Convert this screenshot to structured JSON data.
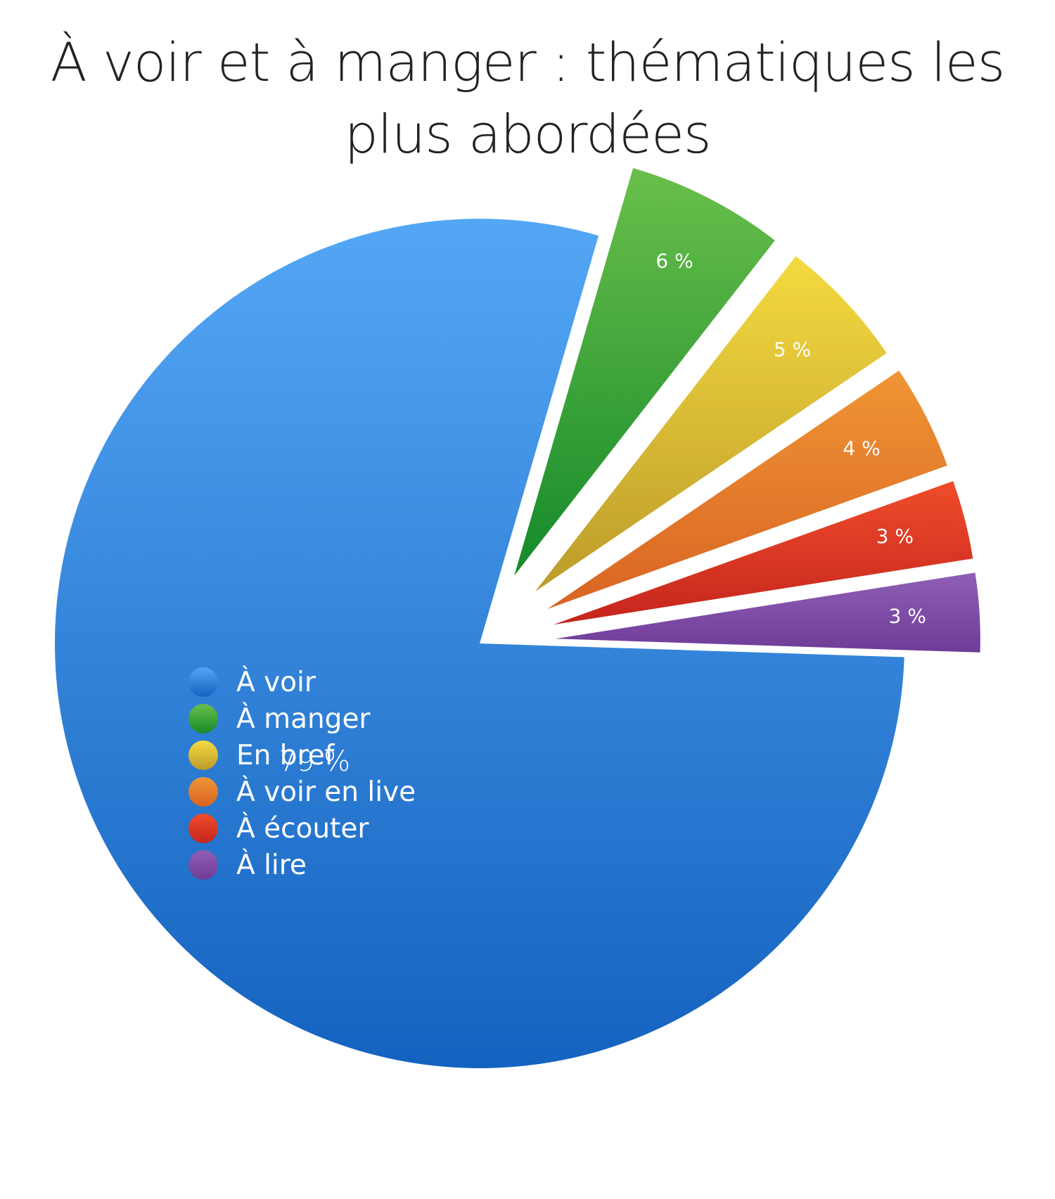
{
  "chart_data": {
    "type": "pie",
    "title": "À voir et à manger : thématiques les plus abordées",
    "slices": [
      {
        "name": "À voir",
        "value": 79,
        "label": "79 %",
        "color": "#3a8ee0",
        "color_top": "#54a7f5",
        "color_bottom": "#1462bf",
        "exploded": false
      },
      {
        "name": "À manger",
        "value": 6,
        "label": "6 %",
        "color": "#3fa33a",
        "color_top": "#6abf4b",
        "color_bottom": "#158a2a",
        "exploded": true
      },
      {
        "name": "En bref",
        "value": 5,
        "label": "5 %",
        "color": "#e0c13a",
        "color_top": "#f4da40",
        "color_bottom": "#bc9b2a",
        "exploded": true
      },
      {
        "name": "À voir en live",
        "value": 4,
        "label": "4 %",
        "color": "#e8802c",
        "color_top": "#f09535",
        "color_bottom": "#d86423",
        "exploded": true
      },
      {
        "name": "À écouter",
        "value": 3,
        "label": "3 %",
        "color": "#e0392a",
        "color_top": "#f04c2b",
        "color_bottom": "#c4251d",
        "exploded": true
      },
      {
        "name": "À lire",
        "value": 3,
        "label": "3 %",
        "color": "#8351ad",
        "color_top": "#8f5fb5",
        "color_bottom": "#6f3b98",
        "exploded": true
      }
    ],
    "legend_position": "inside-left"
  }
}
